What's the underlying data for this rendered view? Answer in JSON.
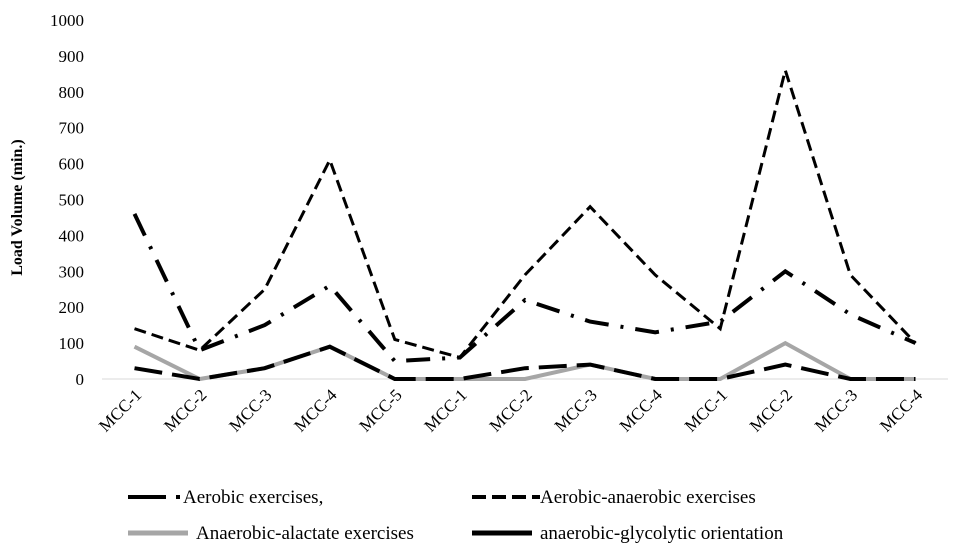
{
  "chart_data": {
    "type": "line",
    "title": "",
    "xlabel": "",
    "ylabel": "Load  Volume  (min.)",
    "ylim": [
      0,
      1000
    ],
    "yticks": [
      0,
      100,
      200,
      300,
      400,
      500,
      600,
      700,
      800,
      900,
      1000
    ],
    "grid": false,
    "legend_position": "bottom",
    "categories": [
      "MCC-1",
      "MCC-2",
      "MCC-3",
      "MCC-4",
      "MCC-5",
      "MCC-1",
      "MCC-2",
      "MCC-3",
      "MCC-4",
      "MCC-1",
      "MCC-2",
      "MCC-3",
      "MCC-4"
    ],
    "series": [
      {
        "name": "Aerobic exercises,",
        "color": "#000000",
        "style": "long-dash-dot",
        "values": [
          460,
          80,
          150,
          260,
          50,
          60,
          220,
          160,
          130,
          160,
          300,
          180,
          100
        ]
      },
      {
        "name": "Aerobic-anaerobic exercises",
        "color": "#000000",
        "style": "dashed",
        "values": [
          140,
          80,
          250,
          610,
          110,
          60,
          290,
          480,
          290,
          140,
          860,
          290,
          100
        ]
      },
      {
        "name": "Anaerobic-alactate exercises",
        "color": "#a6a6a6",
        "style": "solid",
        "values": [
          90,
          0,
          30,
          90,
          0,
          0,
          0,
          40,
          0,
          0,
          100,
          0,
          0
        ]
      },
      {
        "name": "anaerobic-glycolytic orientation",
        "color": "#000000",
        "style": "long-dash",
        "values": [
          30,
          0,
          30,
          90,
          0,
          0,
          30,
          40,
          0,
          0,
          40,
          0,
          0
        ]
      }
    ]
  }
}
